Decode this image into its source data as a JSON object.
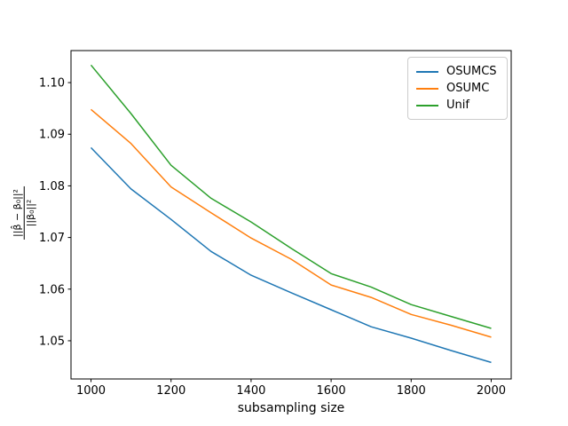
{
  "chart_data": {
    "type": "line",
    "x": [
      1000,
      1100,
      1200,
      1300,
      1400,
      1500,
      1600,
      1700,
      1800,
      1900,
      2000
    ],
    "series": [
      {
        "name": "OSUMCS",
        "color": "#1f77b4",
        "values": [
          1.0874,
          1.0794,
          1.0735,
          1.0673,
          1.0627,
          1.0593,
          1.056,
          1.0527,
          1.0505,
          1.0481,
          1.0458
        ]
      },
      {
        "name": "OSUMC",
        "color": "#ff7f0e",
        "values": [
          1.0948,
          1.0882,
          1.0798,
          1.0748,
          1.0699,
          1.0658,
          1.0608,
          1.0584,
          1.0551,
          1.053,
          1.0507
        ]
      },
      {
        "name": "Unif",
        "color": "#2ca02c",
        "values": [
          1.1034,
          1.094,
          1.084,
          1.0776,
          1.073,
          1.0679,
          1.063,
          1.0604,
          1.057,
          1.0547,
          1.0524
        ]
      }
    ],
    "title": "",
    "xlabel": "subsampling size",
    "ylabel_numerator": "||β̂ − β₀||²",
    "ylabel_denominator": "||β₀||²",
    "xlim": [
      950,
      2050
    ],
    "ylim": [
      1.0426,
      1.1062
    ],
    "xticks": [
      1000,
      1200,
      1400,
      1600,
      1800,
      2000
    ],
    "xticklabels": [
      "1000",
      "1200",
      "1400",
      "1600",
      "1800",
      "2000"
    ],
    "yticks": [
      1.05,
      1.06,
      1.07,
      1.08,
      1.09,
      1.1
    ],
    "yticklabels": [
      "1.05",
      "1.06",
      "1.07",
      "1.08",
      "1.09",
      "1.10"
    ],
    "grid": false,
    "legend_position": "upper right",
    "axis_color": "#000000",
    "background_color": "#ffffff",
    "line_width": 1.5
  }
}
